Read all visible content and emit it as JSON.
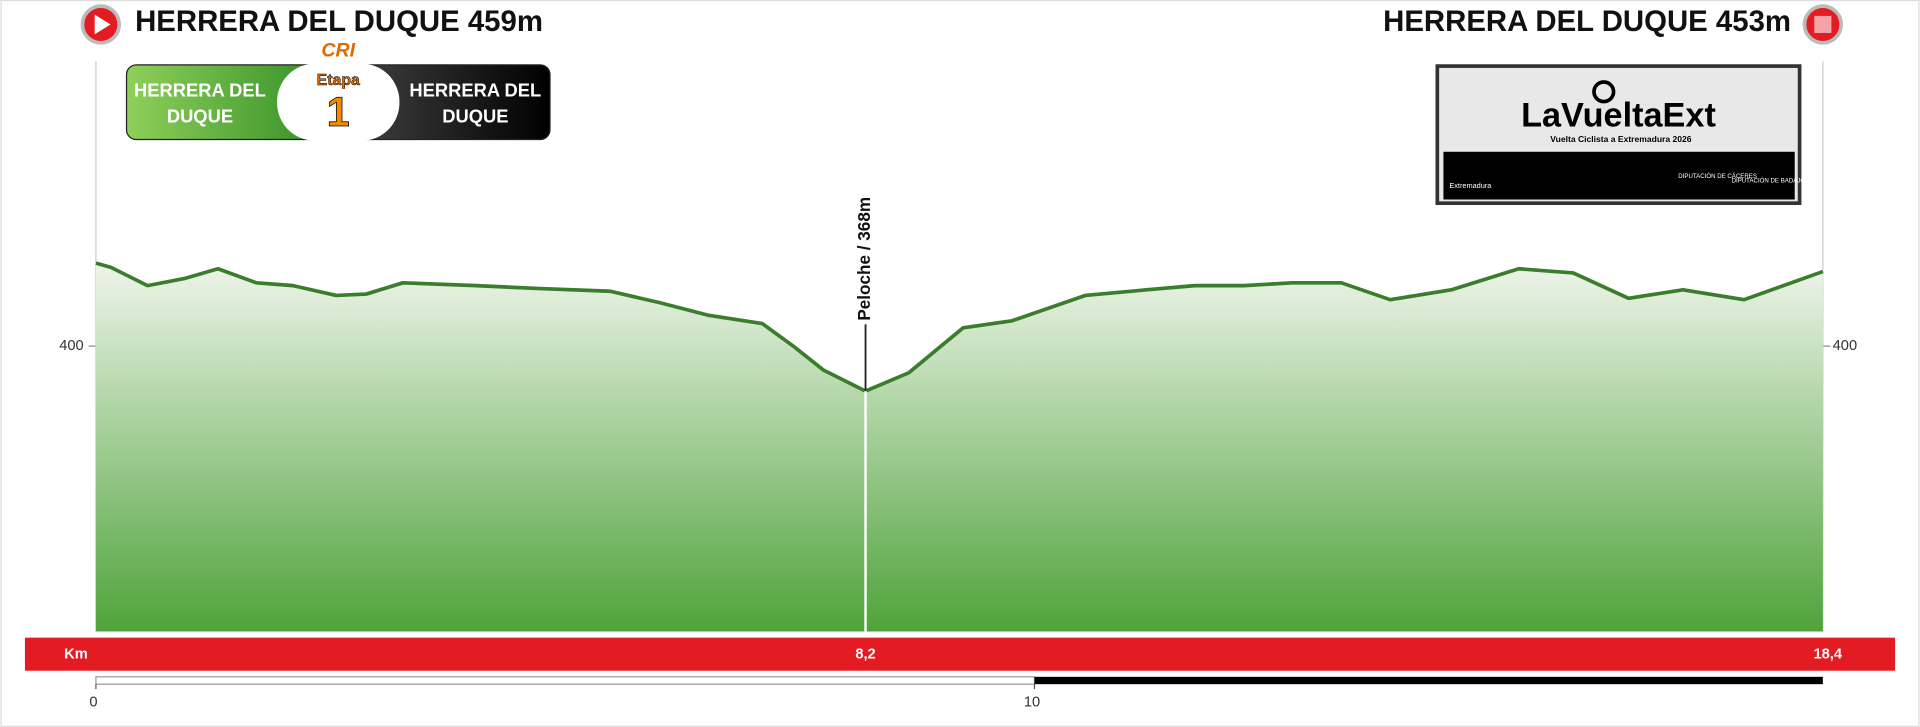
{
  "chart_data": {
    "type": "area",
    "start_label": "HERRERA DEL DUQUE 459m",
    "finish_label": "HERRERA DEL DUQUE 453m",
    "stage_type": "CRI",
    "stage_word": "Etapa",
    "stage_number": "1",
    "from_lines": [
      "HERRERA DEL",
      "DUQUE"
    ],
    "to_lines": [
      "HERRERA DEL",
      "DUQUE"
    ],
    "logo": {
      "title": "LaVueltaExt",
      "subtitle": "Vuelta Ciclista a Extremadura 2026",
      "sponsors": [
        "Extremadura",
        "DIPUTACIÓN DE CÁCERES",
        "DIPUTACIÓN DE BADAJOZ"
      ]
    },
    "x": [
      0,
      0.16,
      0.55,
      0.94,
      1.3,
      1.71,
      2.1,
      2.56,
      2.88,
      3.27,
      4.05,
      4.7,
      5.48,
      6.0,
      6.52,
      7.1,
      7.43,
      7.75,
      8.2,
      8.66,
      9.24,
      9.76,
      10.54,
      11.19,
      11.71,
      12.23,
      12.75,
      13.27,
      13.79,
      14.44,
      15.16,
      15.74,
      16.33,
      16.91,
      17.56,
      18.4
    ],
    "series": [
      {
        "color": "#3a7d2c",
        "values": [
          459,
          456,
          443,
          448,
          455,
          445,
          443,
          436,
          437,
          445,
          443,
          441,
          439,
          431,
          422,
          416,
          400,
          383,
          368,
          381,
          413,
          418,
          436,
          440,
          443,
          443,
          445,
          445,
          433,
          440,
          455,
          452,
          434,
          440,
          433,
          453
        ]
      }
    ],
    "annotations": [
      {
        "text": "Peloche / 368m",
        "x": 8.2,
        "y": 368
      }
    ],
    "xlim": [
      0,
      18.4
    ],
    "ylim": [
      197,
      600
    ],
    "yticks": [
      400
    ],
    "x_axis_label": "Km",
    "km_markers": [
      {
        "value": 8.2,
        "label": "8,2"
      },
      {
        "value": 18.4,
        "label": "18,4"
      }
    ],
    "scale_ticks": [
      0,
      10
    ]
  }
}
